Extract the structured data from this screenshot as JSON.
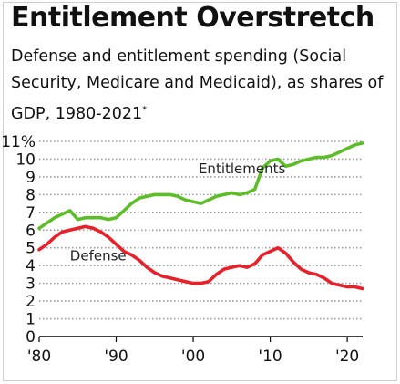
{
  "header": {
    "title": "Entitlement Overstretch",
    "subtitle": "Defense and entitlement spending (Social Security, Medicare and Medicaid), as shares of GDP, 1980-2021",
    "footnote_mark": "*"
  },
  "colors": {
    "entitlements": "#5cbd29",
    "defense": "#e8202a",
    "grid": "#9a9a9a",
    "axis": "#000000"
  },
  "chart_data": {
    "type": "line",
    "title": "Entitlement Overstretch",
    "subtitle": "Defense and entitlement spending (Social Security, Medicare and Medicaid), as shares of GDP, 1980-2021",
    "xlim": [
      1980,
      2022
    ],
    "ylim": [
      0,
      11
    ],
    "y_ticks": [
      0,
      1,
      2,
      3,
      4,
      5,
      6,
      7,
      8,
      9,
      10,
      11
    ],
    "y_tick_labels": [
      "0",
      "1",
      "2",
      "3",
      "4",
      "5",
      "6",
      "7",
      "8",
      "9",
      "10",
      "11%"
    ],
    "x_ticks": [
      1980,
      1990,
      2000,
      2010,
      2020
    ],
    "x_tick_labels": [
      "'80",
      "'90",
      "'00",
      "'10",
      "'20"
    ],
    "grid": "horizontal dotted",
    "series": [
      {
        "name": "Entitlements",
        "label": "Entitlements",
        "x": [
          1980,
          1981,
          1982,
          1983,
          1984,
          1985,
          1986,
          1987,
          1988,
          1989,
          1990,
          1991,
          1992,
          1993,
          1994,
          1995,
          1996,
          1997,
          1998,
          1999,
          2000,
          2001,
          2002,
          2003,
          2004,
          2005,
          2006,
          2007,
          2008,
          2009,
          2010,
          2011,
          2012,
          2013,
          2014,
          2015,
          2016,
          2017,
          2018,
          2019,
          2020,
          2021,
          2022
        ],
        "values": [
          6.1,
          6.4,
          6.7,
          6.9,
          7.1,
          6.6,
          6.7,
          6.7,
          6.7,
          6.6,
          6.7,
          7.1,
          7.5,
          7.8,
          7.9,
          8.0,
          8.0,
          8.0,
          7.9,
          7.7,
          7.6,
          7.5,
          7.7,
          7.9,
          8.0,
          8.1,
          8.0,
          8.1,
          8.3,
          9.5,
          9.9,
          10.0,
          9.6,
          9.7,
          9.9,
          10.0,
          10.1,
          10.1,
          10.2,
          10.4,
          10.6,
          10.8,
          10.9
        ]
      },
      {
        "name": "Defense",
        "label": "Defense",
        "x": [
          1980,
          1981,
          1982,
          1983,
          1984,
          1985,
          1986,
          1987,
          1988,
          1989,
          1990,
          1991,
          1992,
          1993,
          1994,
          1995,
          1996,
          1997,
          1998,
          1999,
          2000,
          2001,
          2002,
          2003,
          2004,
          2005,
          2006,
          2007,
          2008,
          2009,
          2010,
          2011,
          2012,
          2013,
          2014,
          2015,
          2016,
          2017,
          2018,
          2019,
          2020,
          2021,
          2022
        ],
        "values": [
          4.9,
          5.2,
          5.6,
          5.9,
          6.0,
          6.1,
          6.2,
          6.1,
          5.9,
          5.6,
          5.2,
          4.8,
          4.6,
          4.3,
          3.9,
          3.6,
          3.4,
          3.3,
          3.2,
          3.1,
          3.0,
          3.0,
          3.1,
          3.5,
          3.8,
          3.9,
          4.0,
          3.9,
          4.1,
          4.6,
          4.8,
          5.0,
          4.7,
          4.2,
          3.8,
          3.6,
          3.5,
          3.3,
          3.0,
          2.9,
          2.8,
          2.8,
          2.7
        ]
      }
    ],
    "annotations": [
      {
        "text": "Entitlements",
        "x": 2000.7,
        "y": 9.2,
        "series": "Entitlements"
      },
      {
        "text": "Defense",
        "x": 1984,
        "y": 4.3,
        "series": "Defense"
      }
    ]
  }
}
